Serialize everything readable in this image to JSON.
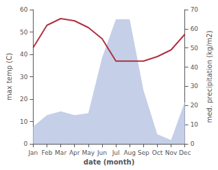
{
  "chart_data": {
    "type": "line",
    "xlabel": "date (month)",
    "ylabel": "max temp (C)",
    "y2label": "med. precipitation (kg/m2)",
    "categories": [
      "Jan",
      "Feb",
      "Mar",
      "Apr",
      "May",
      "Jun",
      "Jul",
      "Aug",
      "Sep",
      "Oct",
      "Nov",
      "Dec"
    ],
    "series": [
      {
        "type": "area",
        "axis": "y2",
        "color": "#c5cfe8",
        "values": [
          9,
          15,
          17,
          15,
          16,
          45,
          65,
          65,
          28,
          5,
          2,
          22
        ]
      },
      {
        "type": "line",
        "color": "#b03040",
        "values": [
          43,
          53,
          56,
          55,
          52,
          47,
          37,
          37,
          37,
          39,
          42,
          49
        ]
      }
    ],
    "ylim": [
      0,
      60
    ],
    "yticks": [
      0,
      10,
      20,
      30,
      40,
      50,
      60
    ],
    "y2lim": [
      0,
      70
    ],
    "y2ticks": [
      0,
      10,
      20,
      30,
      40,
      50,
      60,
      70
    ],
    "grid": false
  }
}
